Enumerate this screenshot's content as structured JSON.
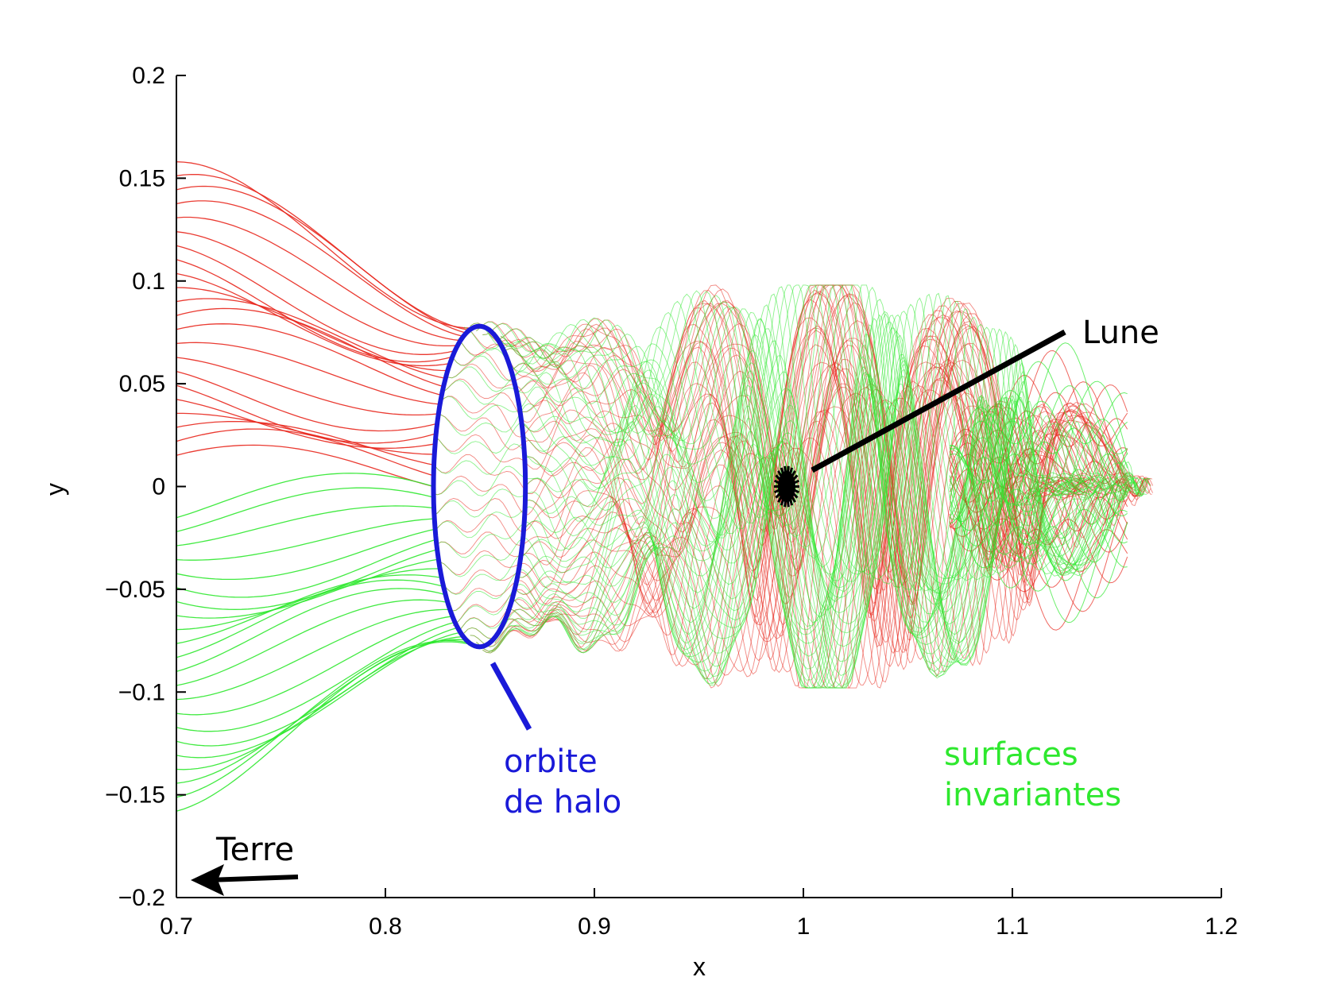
{
  "chart_data": {
    "type": "line",
    "xlabel": "x",
    "ylabel": "y",
    "xlim": [
      0.7,
      1.2
    ],
    "ylim": [
      -0.2,
      0.2
    ],
    "grid": false,
    "x_ticks": [
      0.7,
      0.8,
      0.9,
      1,
      1.1,
      1.2
    ],
    "x_tick_labels": [
      "0.7",
      "0.8",
      "0.9",
      "1",
      "1.1",
      "1.2"
    ],
    "y_ticks": [
      0.2,
      0.15,
      0.1,
      0.05,
      0,
      -0.05,
      -0.1,
      -0.15,
      -0.2
    ],
    "y_tick_labels": [
      "0.2",
      "0.15",
      "0.1",
      "0.05",
      "0",
      "−0.05",
      "−0.1",
      "−0.15",
      "−0.2"
    ],
    "colors": {
      "halo_orbit": "#1a1ad8",
      "unstable_manifold": "#e8261c",
      "stable_manifold": "#2ee82e",
      "annotation_black": "#000000",
      "label_blue": "#1a1ad8",
      "label_green": "#2ee82e"
    },
    "halo_orbit": {
      "center": [
        0.845,
        0.0
      ],
      "x_half_width": 0.022,
      "y_half_height": 0.078
    },
    "moon": {
      "x": 0.992,
      "y": 0.0
    },
    "annotations": {
      "lune": "Lune",
      "orbite_line1": "orbite",
      "orbite_line2": "de halo",
      "surfaces_line1": "surfaces",
      "surfaces_line2": "invariantes",
      "terre": "Terre"
    }
  }
}
